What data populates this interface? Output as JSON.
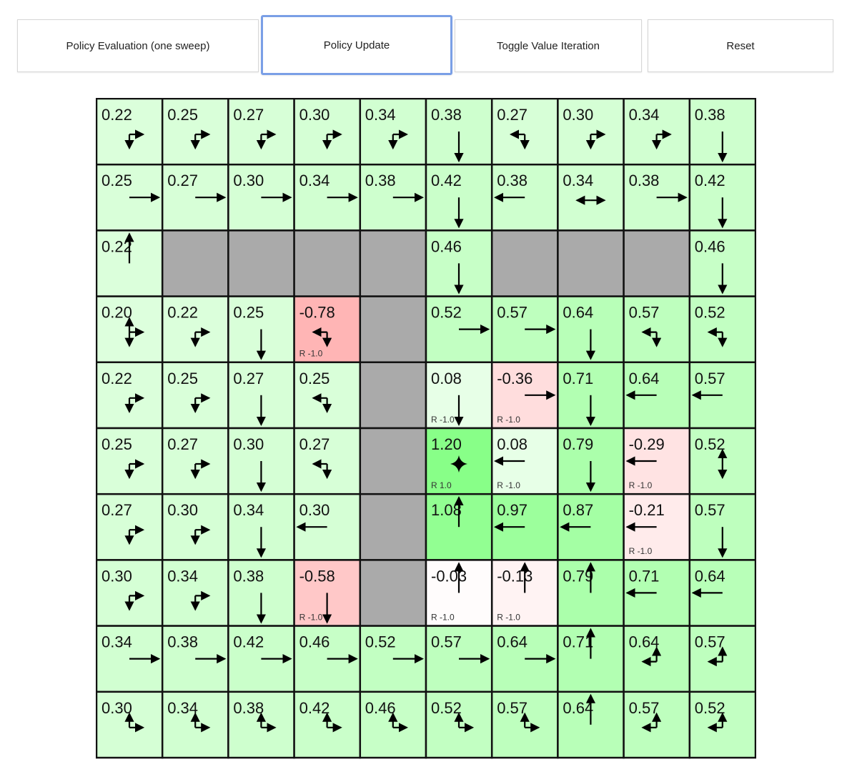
{
  "toolbar": {
    "buttons": [
      {
        "label": "Policy Evaluation (one sweep)"
      },
      {
        "label": "Policy Update",
        "focused": true
      },
      {
        "label": "Toggle Value Iteration"
      },
      {
        "label": "Reset"
      }
    ],
    "focus_color": "#7a9fe6"
  },
  "grid": {
    "rows": 10,
    "cols": 10,
    "wall_color": "#aaaaaa",
    "agent_icon": "star-icon",
    "cells": [
      [
        {
          "v": "0.22",
          "p": "rd"
        },
        {
          "v": "0.25",
          "p": "rd"
        },
        {
          "v": "0.27",
          "p": "rd"
        },
        {
          "v": "0.30",
          "p": "rd"
        },
        {
          "v": "0.34",
          "p": "rd"
        },
        {
          "v": "0.38",
          "p": "d"
        },
        {
          "v": "0.27",
          "p": "ld"
        },
        {
          "v": "0.30",
          "p": "rd"
        },
        {
          "v": "0.34",
          "p": "rd"
        },
        {
          "v": "0.38",
          "p": "d"
        }
      ],
      [
        {
          "v": "0.25",
          "p": "r"
        },
        {
          "v": "0.27",
          "p": "r"
        },
        {
          "v": "0.30",
          "p": "r"
        },
        {
          "v": "0.34",
          "p": "r"
        },
        {
          "v": "0.38",
          "p": "r"
        },
        {
          "v": "0.42",
          "p": "d"
        },
        {
          "v": "0.38",
          "p": "l"
        },
        {
          "v": "0.34",
          "p": "lr"
        },
        {
          "v": "0.38",
          "p": "r"
        },
        {
          "v": "0.42",
          "p": "d"
        }
      ],
      [
        {
          "v": "0.22",
          "p": "u"
        },
        {
          "wall": true
        },
        {
          "wall": true
        },
        {
          "wall": true
        },
        {
          "wall": true
        },
        {
          "v": "0.46",
          "p": "d"
        },
        {
          "wall": true
        },
        {
          "wall": true
        },
        {
          "wall": true
        },
        {
          "v": "0.46",
          "p": "d"
        }
      ],
      [
        {
          "v": "0.20",
          "p": "urd"
        },
        {
          "v": "0.22",
          "p": "rd"
        },
        {
          "v": "0.25",
          "p": "d"
        },
        {
          "v": "-0.78",
          "p": "ld",
          "r": "R -1.0"
        },
        {
          "wall": true
        },
        {
          "v": "0.52",
          "p": "r"
        },
        {
          "v": "0.57",
          "p": "r"
        },
        {
          "v": "0.64",
          "p": "d"
        },
        {
          "v": "0.57",
          "p": "ld"
        },
        {
          "v": "0.52",
          "p": "ld"
        }
      ],
      [
        {
          "v": "0.22",
          "p": "rd"
        },
        {
          "v": "0.25",
          "p": "rd"
        },
        {
          "v": "0.27",
          "p": "d"
        },
        {
          "v": "0.25",
          "p": "ld"
        },
        {
          "wall": true
        },
        {
          "v": "0.08",
          "p": "d",
          "r": "R -1.0"
        },
        {
          "v": "-0.36",
          "p": "r",
          "r": "R -1.0"
        },
        {
          "v": "0.71",
          "p": "d"
        },
        {
          "v": "0.64",
          "p": "l"
        },
        {
          "v": "0.57",
          "p": "l"
        }
      ],
      [
        {
          "v": "0.25",
          "p": "rd"
        },
        {
          "v": "0.27",
          "p": "rd"
        },
        {
          "v": "0.30",
          "p": "d"
        },
        {
          "v": "0.27",
          "p": "ld"
        },
        {
          "wall": true
        },
        {
          "v": "1.20",
          "p": "",
          "r": "R 1.0",
          "agent": true
        },
        {
          "v": "0.08",
          "p": "l",
          "r": "R -1.0"
        },
        {
          "v": "0.79",
          "p": "d"
        },
        {
          "v": "-0.29",
          "p": "l",
          "r": "R -1.0"
        },
        {
          "v": "0.52",
          "p": "ud"
        }
      ],
      [
        {
          "v": "0.27",
          "p": "rd"
        },
        {
          "v": "0.30",
          "p": "rd"
        },
        {
          "v": "0.34",
          "p": "d"
        },
        {
          "v": "0.30",
          "p": "l"
        },
        {
          "wall": true
        },
        {
          "v": "1.08",
          "p": "u"
        },
        {
          "v": "0.97",
          "p": "l"
        },
        {
          "v": "0.87",
          "p": "l"
        },
        {
          "v": "-0.21",
          "p": "l",
          "r": "R -1.0"
        },
        {
          "v": "0.57",
          "p": "d"
        }
      ],
      [
        {
          "v": "0.30",
          "p": "rd"
        },
        {
          "v": "0.34",
          "p": "rd"
        },
        {
          "v": "0.38",
          "p": "d"
        },
        {
          "v": "-0.58",
          "p": "d",
          "r": "R -1.0"
        },
        {
          "wall": true
        },
        {
          "v": "-0.03",
          "p": "u",
          "r": "R -1.0"
        },
        {
          "v": "-0.13",
          "p": "u",
          "r": "R -1.0"
        },
        {
          "v": "0.79",
          "p": "u"
        },
        {
          "v": "0.71",
          "p": "l"
        },
        {
          "v": "0.64",
          "p": "l"
        }
      ],
      [
        {
          "v": "0.34",
          "p": "r"
        },
        {
          "v": "0.38",
          "p": "r"
        },
        {
          "v": "0.42",
          "p": "r"
        },
        {
          "v": "0.46",
          "p": "r"
        },
        {
          "v": "0.52",
          "p": "r"
        },
        {
          "v": "0.57",
          "p": "r"
        },
        {
          "v": "0.64",
          "p": "r"
        },
        {
          "v": "0.71",
          "p": "u"
        },
        {
          "v": "0.64",
          "p": "ul"
        },
        {
          "v": "0.57",
          "p": "ul"
        }
      ],
      [
        {
          "v": "0.30",
          "p": "ur"
        },
        {
          "v": "0.34",
          "p": "ur"
        },
        {
          "v": "0.38",
          "p": "ur"
        },
        {
          "v": "0.42",
          "p": "ur"
        },
        {
          "v": "0.46",
          "p": "ur"
        },
        {
          "v": "0.52",
          "p": "ur"
        },
        {
          "v": "0.57",
          "p": "ur"
        },
        {
          "v": "0.64",
          "p": "u"
        },
        {
          "v": "0.57",
          "p": "ul"
        },
        {
          "v": "0.52",
          "p": "ul"
        }
      ]
    ]
  }
}
